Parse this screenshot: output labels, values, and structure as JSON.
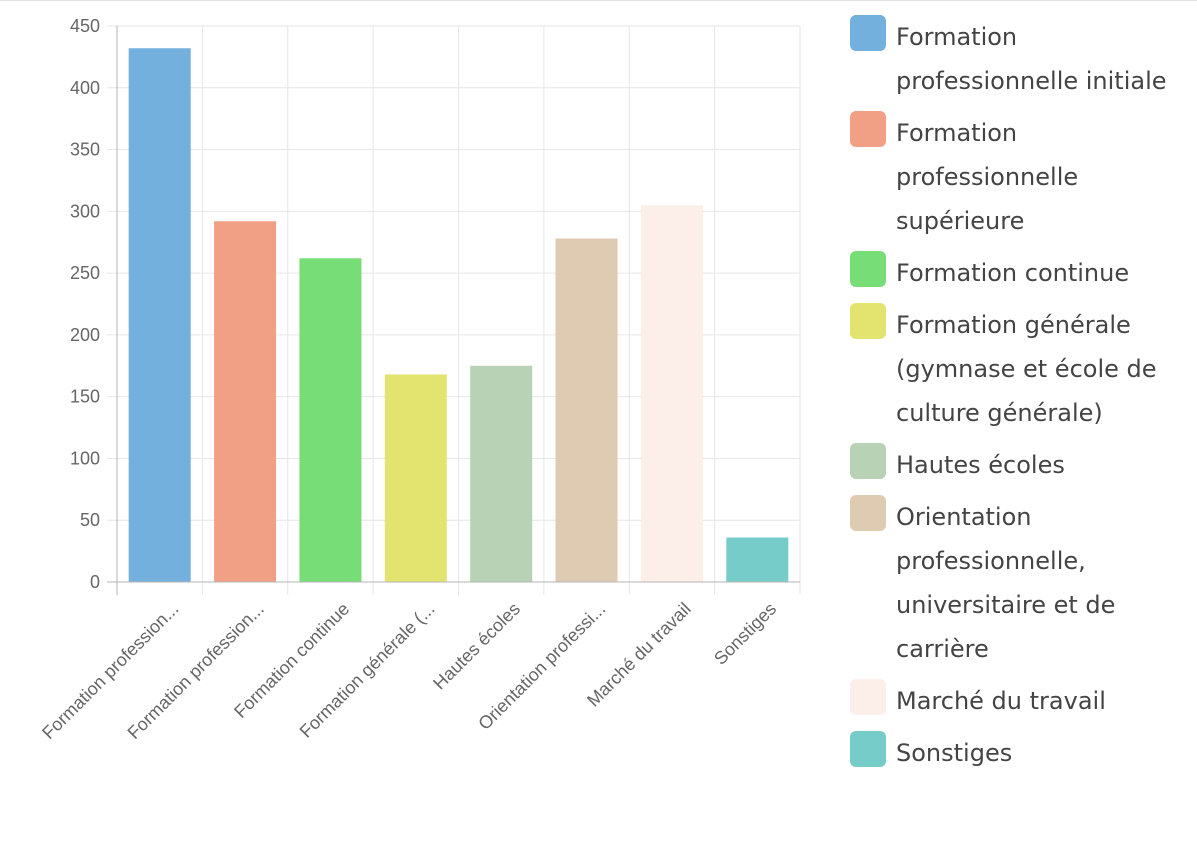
{
  "chart_data": {
    "type": "bar",
    "categories": [
      "Formation profession...",
      "Formation profession...",
      "Formation continue",
      "Formation générale (...",
      "Hautes écoles",
      "Orientation professi...",
      "Marché du travail",
      "Sonstiges"
    ],
    "values": [
      432,
      292,
      262,
      168,
      175,
      278,
      305,
      36
    ],
    "ylim": [
      0,
      450
    ],
    "yticks": [
      0,
      50,
      100,
      150,
      200,
      250,
      300,
      350,
      400,
      450
    ],
    "grid": true,
    "legend_position": "right",
    "legend": [
      "Formation professionnelle initiale",
      "Formation professionnelle supérieure",
      "Formation continue",
      "Formation générale (gymnase et école de culture générale)",
      "Hautes écoles",
      "Orientation professionnelle, universitaire et de carrière",
      "Marché du travail",
      "Sonstiges"
    ],
    "colors": [
      "#73b0dd",
      "#f1a085",
      "#77dd77",
      "#e2e46f",
      "#b7d2b4",
      "#decbb1",
      "#fcefe9",
      "#75ccc8"
    ]
  }
}
